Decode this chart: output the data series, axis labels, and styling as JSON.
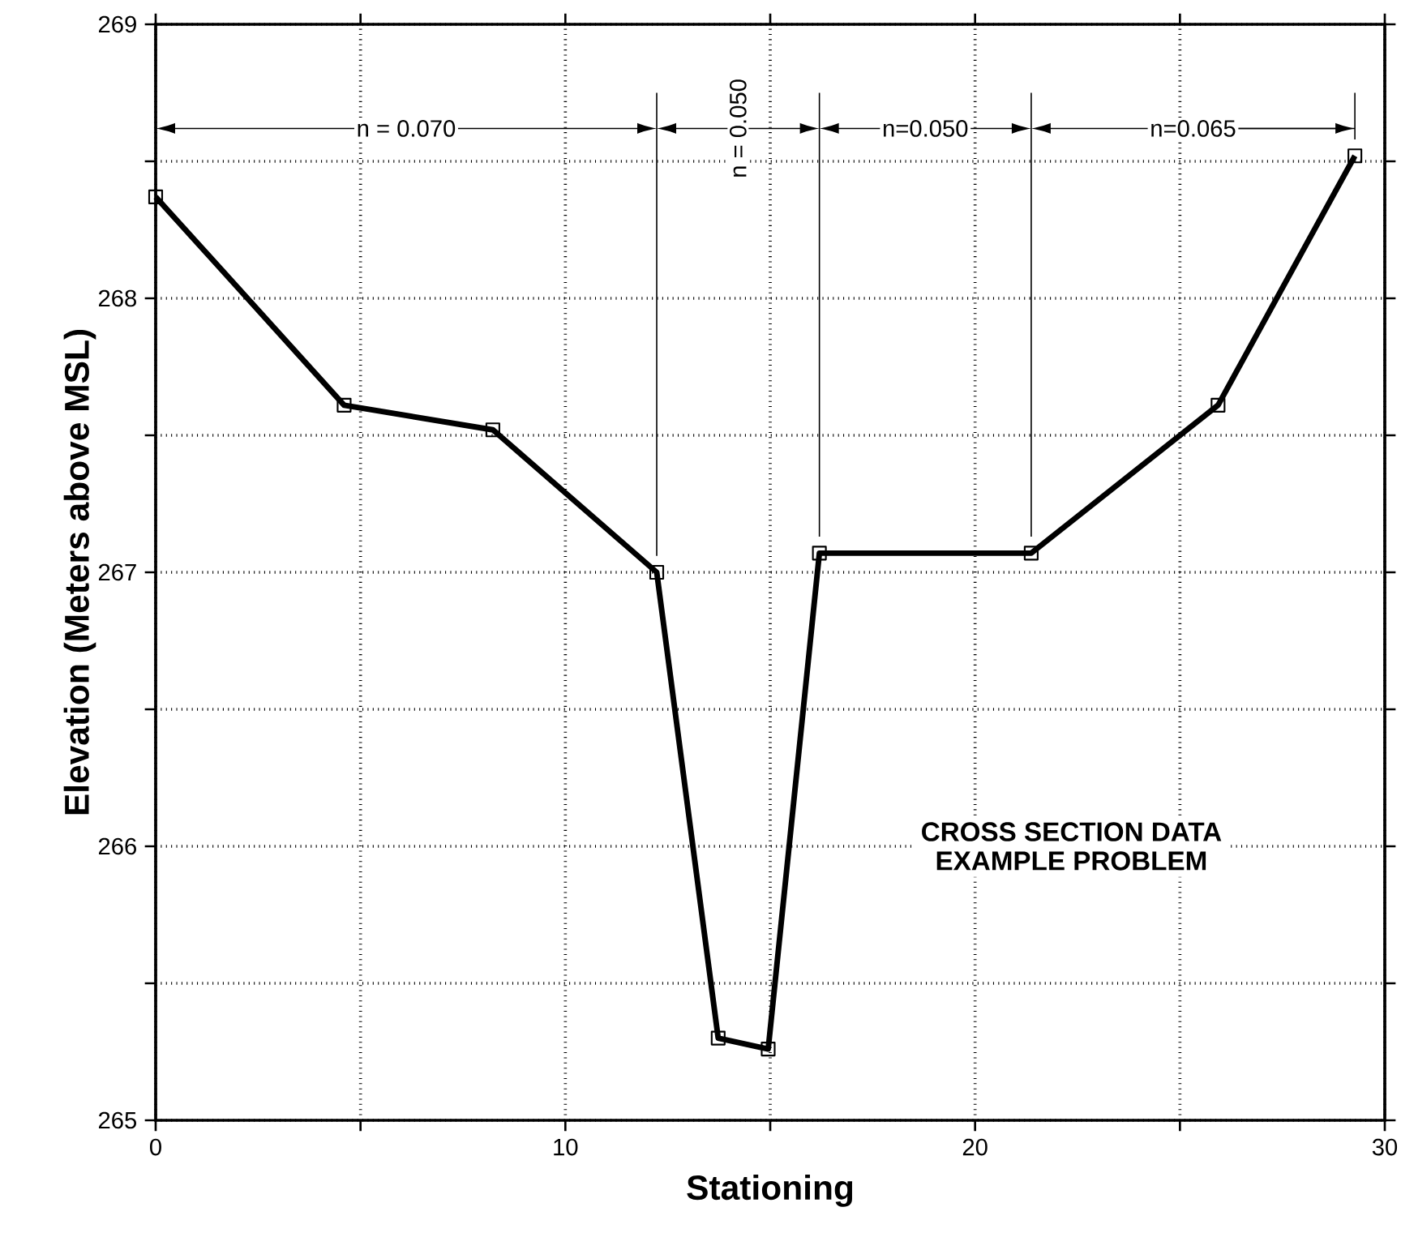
{
  "chart_data": {
    "type": "line",
    "xlabel": "Stationing",
    "ylabel": "Elevation (Meters above MSL)",
    "x": [
      0,
      4.6,
      8.23,
      12.23,
      13.73,
      14.95,
      16.2,
      21.37,
      25.93,
      29.27
    ],
    "series": [
      {
        "color": "#000000",
        "values": [
          268.37,
          267.61,
          267.52,
          267.0,
          265.3,
          265.26,
          267.07,
          267.07,
          267.61,
          268.52
        ]
      }
    ],
    "xlim": [
      0,
      30
    ],
    "ylim": [
      265,
      269
    ],
    "xticks": [
      0,
      {
        "value": 5,
        "label": null
      },
      10,
      {
        "value": 15,
        "label": null
      },
      20,
      {
        "value": 25,
        "label": null
      },
      30
    ],
    "yticks": [
      265,
      {
        "value": 265.5,
        "label": null
      },
      266,
      {
        "value": 266.5,
        "label": null
      },
      267,
      {
        "value": 267.5,
        "label": null
      },
      268,
      {
        "value": 268.5,
        "label": null
      },
      269
    ],
    "grid": true,
    "marker": "square",
    "line_style": "solid",
    "ref_lines": [
      {
        "axis": "x",
        "value": 12.23,
        "color": "#000000"
      },
      {
        "axis": "x",
        "value": 16.2,
        "color": "#000000"
      },
      {
        "axis": "x",
        "value": 21.37,
        "color": "#000000"
      }
    ],
    "annotations": [
      "n = 0.070",
      "n = 0.050",
      "n=0.050",
      "n=0.065",
      "CROSS SECTION DATA",
      "EXAMPLE PROBLEM"
    ]
  }
}
